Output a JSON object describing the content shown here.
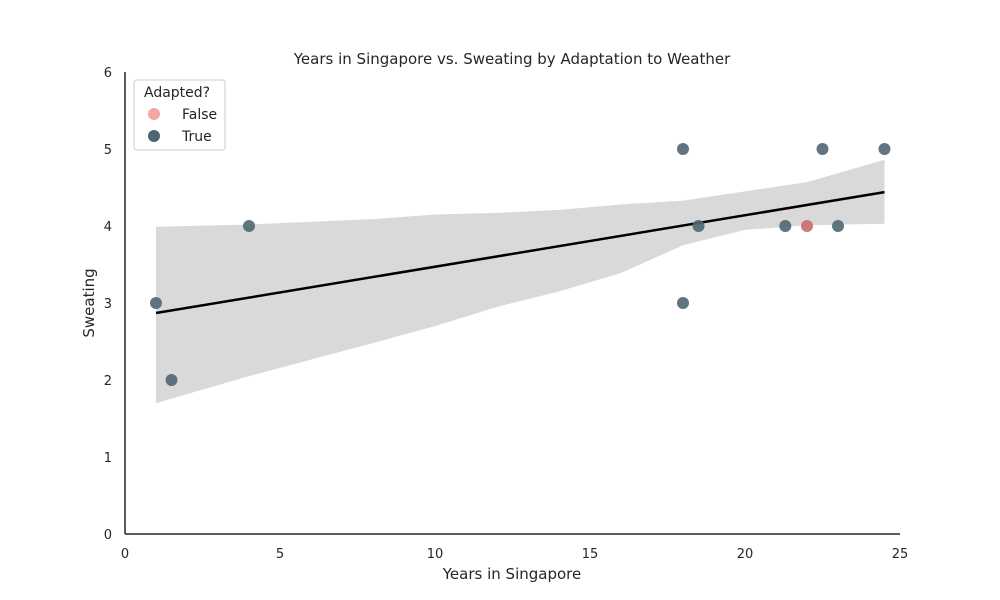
{
  "chart_data": {
    "type": "scatter",
    "title": "Years in Singapore vs. Sweating by Adaptation to Weather",
    "xlabel": "Years in Singapore",
    "ylabel": "Sweating",
    "xlim": [
      0,
      25
    ],
    "ylim": [
      0,
      6
    ],
    "xticks": [
      "0",
      "5",
      "10",
      "15",
      "20",
      "25"
    ],
    "yticks": [
      "0",
      "1",
      "2",
      "3",
      "4",
      "5",
      "6"
    ],
    "grid": false,
    "legend": {
      "title": "Adapted?",
      "placement": "top-left",
      "entries": [
        {
          "label": "False",
          "color": "#f4a6a0"
        },
        {
          "label": "True",
          "color": "#4f6672"
        }
      ]
    },
    "series": [
      {
        "name": "False",
        "color": "#c96b6b",
        "points": [
          {
            "x": 22,
            "y": 4
          }
        ]
      },
      {
        "name": "True",
        "color": "#4f6672",
        "points": [
          {
            "x": 1,
            "y": 3
          },
          {
            "x": 1.5,
            "y": 2
          },
          {
            "x": 4,
            "y": 4
          },
          {
            "x": 18,
            "y": 5
          },
          {
            "x": 18,
            "y": 3
          },
          {
            "x": 18.5,
            "y": 4
          },
          {
            "x": 21.3,
            "y": 4
          },
          {
            "x": 22.5,
            "y": 5
          },
          {
            "x": 23,
            "y": 4
          },
          {
            "x": 24.5,
            "y": 5
          }
        ]
      }
    ],
    "regression": {
      "color": "#000000",
      "line": [
        {
          "x": 1,
          "y": 2.87
        },
        {
          "x": 24.5,
          "y": 4.44
        }
      ],
      "ci_color": "#d9d9d9",
      "ci_upper": [
        {
          "x": 1,
          "y": 3.99
        },
        {
          "x": 4,
          "y": 4.02
        },
        {
          "x": 8,
          "y": 4.09
        },
        {
          "x": 10,
          "y": 4.15
        },
        {
          "x": 12,
          "y": 4.17
        },
        {
          "x": 14,
          "y": 4.21
        },
        {
          "x": 16,
          "y": 4.28
        },
        {
          "x": 18,
          "y": 4.33
        },
        {
          "x": 20,
          "y": 4.45
        },
        {
          "x": 22,
          "y": 4.57
        },
        {
          "x": 24.5,
          "y": 4.86
        }
      ],
      "ci_lower": [
        {
          "x": 1,
          "y": 1.7
        },
        {
          "x": 4,
          "y": 2.05
        },
        {
          "x": 8,
          "y": 2.48
        },
        {
          "x": 10,
          "y": 2.7
        },
        {
          "x": 12,
          "y": 2.95
        },
        {
          "x": 14,
          "y": 3.15
        },
        {
          "x": 16,
          "y": 3.39
        },
        {
          "x": 18,
          "y": 3.75
        },
        {
          "x": 19,
          "y": 3.85
        },
        {
          "x": 20,
          "y": 3.95
        },
        {
          "x": 22,
          "y": 4.01
        },
        {
          "x": 24.5,
          "y": 4.03
        }
      ]
    }
  }
}
